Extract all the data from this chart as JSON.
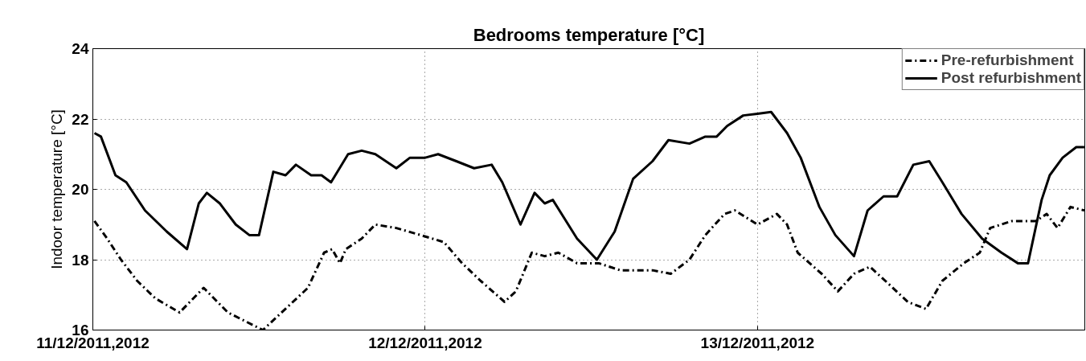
{
  "chart_data": {
    "type": "line",
    "title": "Bedrooms temperature [°C]",
    "ylabel": "Indoor temperature [°C]",
    "xlim": [
      "2011-12-11T00:00",
      "2011-12-13T23:38"
    ],
    "xticks": [
      {
        "value": "2011-12-11",
        "label": "11/12/2011,2012"
      },
      {
        "value": "2011-12-12",
        "label": "12/12/2011,2012"
      },
      {
        "value": "2011-12-13",
        "label": "13/12/2011,2012"
      }
    ],
    "ylim": [
      16,
      24
    ],
    "yticks": [
      16,
      18,
      20,
      22,
      24
    ],
    "grid": true,
    "legend": "top right",
    "series": [
      {
        "name": "Pre-refurbishment",
        "color": "#000000",
        "line_style": "dashdot",
        "x": [
          "2011-12-11T00:07",
          "2011-12-11T01:02",
          "2011-12-11T02:02",
          "2011-12-11T03:12",
          "2011-12-11T04:31",
          "2011-12-11T06:16",
          "2011-12-11T08:00",
          "2011-12-11T09:45",
          "2011-12-11T12:17",
          "2011-12-11T13:38",
          "2011-12-11T15:32",
          "2011-12-11T16:42",
          "2011-12-11T17:17",
          "2011-12-11T17:51",
          "2011-12-11T18:16",
          "2011-12-11T19:25",
          "2011-12-11T20:24",
          "2011-12-11T21:55",
          "2011-12-11T23:40",
          "2011-12-12T01:21",
          "2011-12-12T02:40",
          "2011-12-12T04:00",
          "2011-12-12T05:44",
          "2011-12-12T06:33",
          "2011-12-12T07:42",
          "2011-12-12T08:38",
          "2011-12-12T09:37",
          "2011-12-12T10:58",
          "2011-12-12T12:32",
          "2011-12-12T14:05",
          "2011-12-12T15:14",
          "2011-12-12T16:25",
          "2011-12-12T17:44",
          "2011-12-12T19:05",
          "2011-12-12T20:14",
          "2011-12-12T21:37",
          "2011-12-12T22:22",
          "2011-12-13T00:00",
          "2011-12-13T01:24",
          "2011-12-13T02:08",
          "2011-12-13T02:54",
          "2011-12-13T04:38",
          "2011-12-13T05:48",
          "2011-12-13T06:58",
          "2011-12-13T08:07",
          "2011-12-13T09:30",
          "2011-12-13T10:51",
          "2011-12-13T12:10",
          "2011-12-13T13:21",
          "2011-12-13T14:54",
          "2011-12-13T16:03",
          "2011-12-13T16:48",
          "2011-12-13T18:23",
          "2011-12-13T20:07",
          "2011-12-13T20:53",
          "2011-12-13T21:40",
          "2011-12-13T22:36",
          "2011-12-13T23:36"
        ],
        "values": [
          19.1,
          18.6,
          18.0,
          17.4,
          16.9,
          16.5,
          17.2,
          16.5,
          16.0,
          16.5,
          17.2,
          18.2,
          18.3,
          17.9,
          18.3,
          18.6,
          19.0,
          18.9,
          18.7,
          18.5,
          17.9,
          17.4,
          16.8,
          17.1,
          18.2,
          18.1,
          18.2,
          17.9,
          17.9,
          17.7,
          17.7,
          17.7,
          17.6,
          18.0,
          18.7,
          19.3,
          19.4,
          19.0,
          19.3,
          19.0,
          18.2,
          17.6,
          17.1,
          17.6,
          17.8,
          17.3,
          16.8,
          16.6,
          17.4,
          17.9,
          18.2,
          18.9,
          19.1,
          19.1,
          19.3,
          18.9,
          19.5,
          19.4
        ]
      },
      {
        "name": "Post refurbishment",
        "color": "#000000",
        "line_style": "solid",
        "x": [
          "2011-12-11T00:07",
          "2011-12-11T00:35",
          "2011-12-11T01:38",
          "2011-12-11T02:25",
          "2011-12-11T03:46",
          "2011-12-11T05:20",
          "2011-12-11T06:48",
          "2011-12-11T07:39",
          "2011-12-11T08:14",
          "2011-12-11T09:10",
          "2011-12-11T10:19",
          "2011-12-11T11:18",
          "2011-12-11T12:00",
          "2011-12-11T13:02",
          "2011-12-11T13:55",
          "2011-12-11T14:40",
          "2011-12-11T15:46",
          "2011-12-11T16:31",
          "2011-12-11T17:12",
          "2011-12-11T18:26",
          "2011-12-11T19:25",
          "2011-12-11T20:24",
          "2011-12-11T21:55",
          "2011-12-11T22:54",
          "2011-12-12T00:00",
          "2011-12-12T00:56",
          "2011-12-12T02:15",
          "2011-12-12T03:32",
          "2011-12-12T04:48",
          "2011-12-12T05:34",
          "2011-12-12T06:53",
          "2011-12-12T07:54",
          "2011-12-12T08:38",
          "2011-12-12T09:13",
          "2011-12-12T10:58",
          "2011-12-12T12:24",
          "2011-12-12T13:41",
          "2011-12-12T15:01",
          "2011-12-12T16:25",
          "2011-12-12T17:34",
          "2011-12-12T19:05",
          "2011-12-12T20:14",
          "2011-12-12T21:03",
          "2011-12-12T21:48",
          "2011-12-12T22:58",
          "2011-12-13T00:00",
          "2011-12-13T00:59",
          "2011-12-13T02:08",
          "2011-12-13T03:07",
          "2011-12-13T04:28",
          "2011-12-13T05:37",
          "2011-12-13T06:58",
          "2011-12-13T07:57",
          "2011-12-13T09:06",
          "2011-12-13T10:05",
          "2011-12-13T11:15",
          "2011-12-13T12:24",
          "2011-12-13T13:21",
          "2011-12-13T14:44",
          "2011-12-13T16:13",
          "2011-12-13T17:37",
          "2011-12-13T18:48",
          "2011-12-13T19:32",
          "2011-12-13T20:31",
          "2011-12-13T21:06",
          "2011-12-13T22:02",
          "2011-12-13T23:01",
          "2011-12-13T23:36"
        ],
        "values": [
          21.6,
          21.5,
          20.4,
          20.2,
          19.4,
          18.8,
          18.3,
          19.6,
          19.9,
          19.6,
          19.0,
          18.7,
          18.7,
          20.5,
          20.4,
          20.7,
          20.4,
          20.4,
          20.2,
          21.0,
          21.1,
          21.0,
          20.6,
          20.9,
          20.9,
          21.0,
          20.8,
          20.6,
          20.7,
          20.2,
          19.0,
          19.9,
          19.6,
          19.7,
          18.6,
          18.0,
          18.8,
          20.3,
          20.8,
          21.4,
          21.3,
          21.5,
          21.5,
          21.8,
          22.1,
          22.15,
          22.2,
          21.6,
          20.9,
          19.5,
          18.7,
          18.1,
          19.4,
          19.8,
          19.8,
          20.7,
          20.8,
          20.2,
          19.3,
          18.6,
          18.2,
          17.9,
          17.9,
          19.7,
          20.4,
          20.9,
          21.2,
          21.2
        ]
      }
    ]
  }
}
